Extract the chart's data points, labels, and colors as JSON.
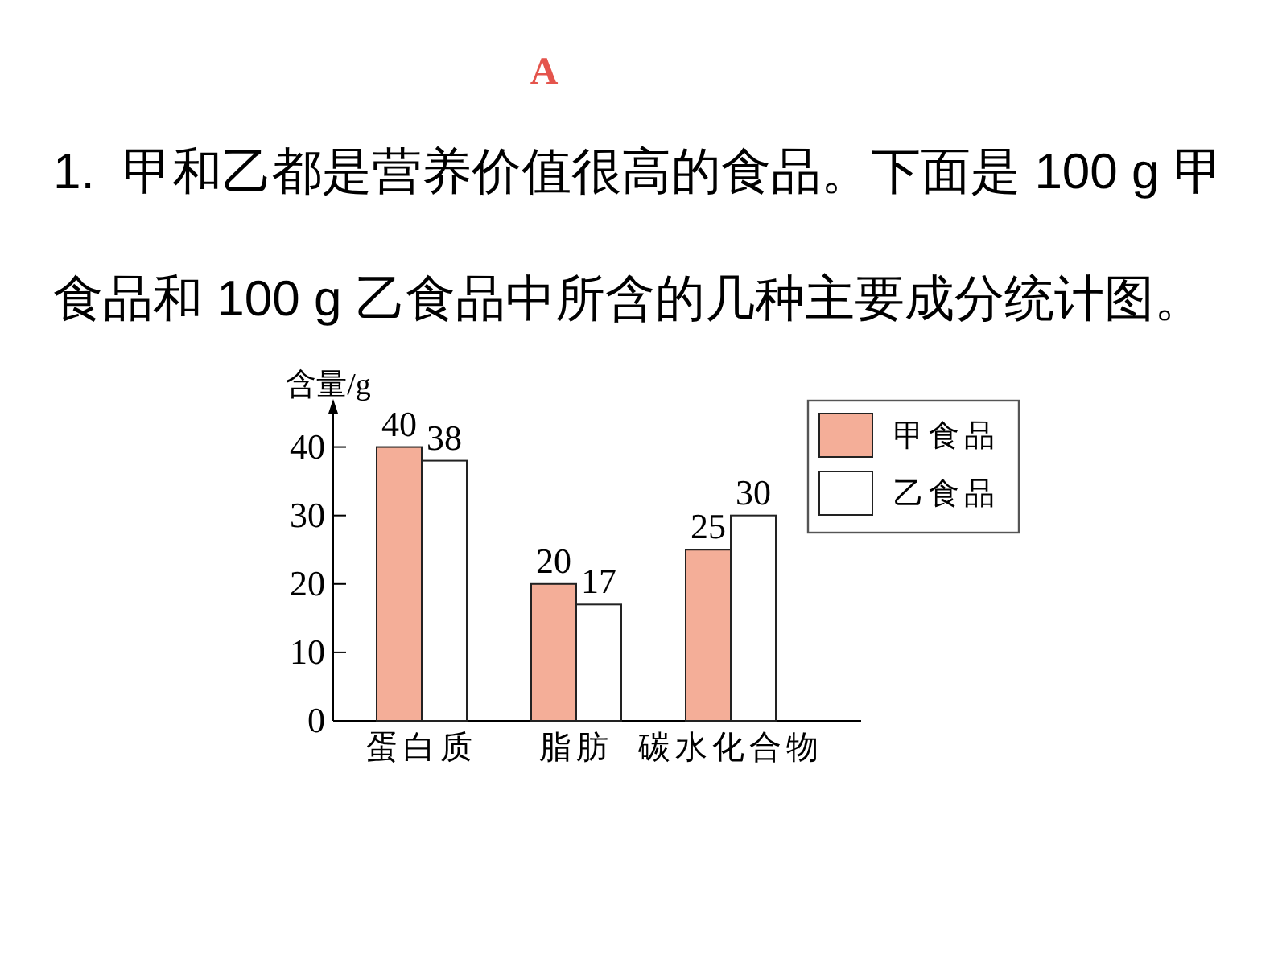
{
  "chart_data": {
    "type": "bar",
    "title": "A",
    "subtitle": "1.  甲和乙都是营养价值很高的食品。下面是 100 g 甲食品和 100 g 乙食品中所含的几种主要成分统计图。",
    "ylabel": "含量/g",
    "categories": [
      "蛋白质",
      "脂肪",
      "碳水化合物"
    ],
    "series": [
      {
        "name": "甲食品",
        "color": "#f4ae98",
        "values": [
          40,
          20,
          25
        ]
      },
      {
        "name": "乙食品",
        "color": "#ffffff",
        "values": [
          38,
          17,
          30
        ]
      }
    ],
    "ylim": [
      0,
      47
    ],
    "yticks": [
      0,
      10,
      20,
      30,
      40
    ],
    "data_labels": true,
    "legend": "top right"
  }
}
